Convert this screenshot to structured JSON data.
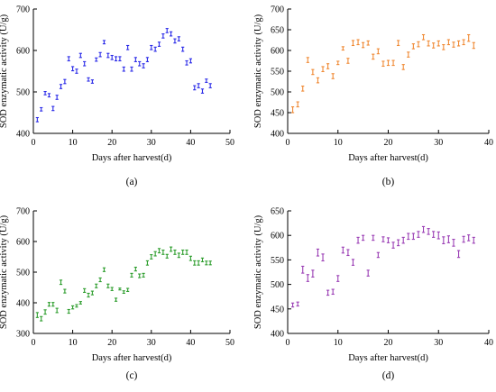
{
  "chart_data": [
    {
      "panel": "(a)",
      "type": "scatter",
      "color": "#2B2BE8",
      "xlabel": "Days after harvest(d)",
      "ylabel": "SOD enzymatic activity (U/g)",
      "xlim": [
        0,
        50
      ],
      "xticks": [
        0,
        10,
        20,
        30,
        40,
        50
      ],
      "ylim": [
        400,
        700
      ],
      "yticks": [
        400,
        500,
        600,
        700
      ],
      "grid": false,
      "points": [
        {
          "x": 1,
          "y": 433,
          "err": 5
        },
        {
          "x": 2,
          "y": 458,
          "err": 4
        },
        {
          "x": 3,
          "y": 497,
          "err": 4
        },
        {
          "x": 4,
          "y": 492,
          "err": 4
        },
        {
          "x": 5,
          "y": 460,
          "err": 5
        },
        {
          "x": 6,
          "y": 487,
          "err": 5
        },
        {
          "x": 7,
          "y": 513,
          "err": 5
        },
        {
          "x": 8,
          "y": 525,
          "err": 5
        },
        {
          "x": 9,
          "y": 580,
          "err": 5
        },
        {
          "x": 10,
          "y": 556,
          "err": 5
        },
        {
          "x": 11,
          "y": 550,
          "err": 5
        },
        {
          "x": 12,
          "y": 588,
          "err": 5
        },
        {
          "x": 13,
          "y": 568,
          "err": 5
        },
        {
          "x": 14,
          "y": 530,
          "err": 4
        },
        {
          "x": 15,
          "y": 525,
          "err": 4
        },
        {
          "x": 16,
          "y": 578,
          "err": 4
        },
        {
          "x": 17,
          "y": 590,
          "err": 5
        },
        {
          "x": 18,
          "y": 620,
          "err": 4
        },
        {
          "x": 19,
          "y": 588,
          "err": 5
        },
        {
          "x": 20,
          "y": 583,
          "err": 5
        },
        {
          "x": 21,
          "y": 580,
          "err": 5
        },
        {
          "x": 22,
          "y": 580,
          "err": 5
        },
        {
          "x": 23,
          "y": 555,
          "err": 5
        },
        {
          "x": 24,
          "y": 607,
          "err": 5
        },
        {
          "x": 25,
          "y": 555,
          "err": 5
        },
        {
          "x": 26,
          "y": 578,
          "err": 5
        },
        {
          "x": 27,
          "y": 568,
          "err": 5
        },
        {
          "x": 28,
          "y": 563,
          "err": 5
        },
        {
          "x": 29,
          "y": 578,
          "err": 5
        },
        {
          "x": 30,
          "y": 607,
          "err": 5
        },
        {
          "x": 31,
          "y": 603,
          "err": 5
        },
        {
          "x": 32,
          "y": 615,
          "err": 5
        },
        {
          "x": 33,
          "y": 635,
          "err": 5
        },
        {
          "x": 34,
          "y": 648,
          "err": 5
        },
        {
          "x": 35,
          "y": 640,
          "err": 5
        },
        {
          "x": 36,
          "y": 623,
          "err": 5
        },
        {
          "x": 37,
          "y": 628,
          "err": 5
        },
        {
          "x": 38,
          "y": 603,
          "err": 5
        },
        {
          "x": 39,
          "y": 570,
          "err": 5
        },
        {
          "x": 40,
          "y": 575,
          "err": 5
        },
        {
          "x": 41,
          "y": 510,
          "err": 5
        },
        {
          "x": 42,
          "y": 515,
          "err": 5
        },
        {
          "x": 43,
          "y": 502,
          "err": 5
        },
        {
          "x": 44,
          "y": 527,
          "err": 4
        },
        {
          "x": 45,
          "y": 515,
          "err": 5
        }
      ]
    },
    {
      "panel": "(b)",
      "type": "scatter",
      "color": "#F08A35",
      "xlabel": "Days after harvest(d)",
      "ylabel": "SOD enzymatic activity (U/g)",
      "xlim": [
        0,
        40
      ],
      "xticks": [
        0,
        10,
        20,
        30,
        40
      ],
      "ylim": [
        400,
        700
      ],
      "yticks": [
        400,
        450,
        500,
        550,
        600,
        650,
        700
      ],
      "grid": false,
      "points": [
        {
          "x": 1,
          "y": 457,
          "err": 7
        },
        {
          "x": 2,
          "y": 470,
          "err": 6
        },
        {
          "x": 3,
          "y": 508,
          "err": 6
        },
        {
          "x": 4,
          "y": 577,
          "err": 6
        },
        {
          "x": 5,
          "y": 548,
          "err": 6
        },
        {
          "x": 6,
          "y": 528,
          "err": 6
        },
        {
          "x": 7,
          "y": 555,
          "err": 6
        },
        {
          "x": 8,
          "y": 562,
          "err": 6
        },
        {
          "x": 9,
          "y": 538,
          "err": 6
        },
        {
          "x": 10,
          "y": 570,
          "err": 4
        },
        {
          "x": 11,
          "y": 605,
          "err": 4
        },
        {
          "x": 12,
          "y": 575,
          "err": 6
        },
        {
          "x": 13,
          "y": 618,
          "err": 6
        },
        {
          "x": 14,
          "y": 620,
          "err": 6
        },
        {
          "x": 15,
          "y": 613,
          "err": 6
        },
        {
          "x": 16,
          "y": 618,
          "err": 5
        },
        {
          "x": 17,
          "y": 585,
          "err": 6
        },
        {
          "x": 18,
          "y": 598,
          "err": 6
        },
        {
          "x": 19,
          "y": 568,
          "err": 6
        },
        {
          "x": 20,
          "y": 570,
          "err": 6
        },
        {
          "x": 21,
          "y": 570,
          "err": 6
        },
        {
          "x": 22,
          "y": 618,
          "err": 6
        },
        {
          "x": 23,
          "y": 560,
          "err": 6
        },
        {
          "x": 24,
          "y": 590,
          "err": 6
        },
        {
          "x": 25,
          "y": 610,
          "err": 6
        },
        {
          "x": 26,
          "y": 615,
          "err": 6
        },
        {
          "x": 27,
          "y": 632,
          "err": 6
        },
        {
          "x": 28,
          "y": 617,
          "err": 6
        },
        {
          "x": 29,
          "y": 612,
          "err": 6
        },
        {
          "x": 30,
          "y": 617,
          "err": 6
        },
        {
          "x": 31,
          "y": 608,
          "err": 6
        },
        {
          "x": 32,
          "y": 620,
          "err": 6
        },
        {
          "x": 33,
          "y": 614,
          "err": 6
        },
        {
          "x": 34,
          "y": 617,
          "err": 6
        },
        {
          "x": 35,
          "y": 620,
          "err": 6
        },
        {
          "x": 36,
          "y": 630,
          "err": 8
        },
        {
          "x": 37,
          "y": 612,
          "err": 7
        }
      ]
    },
    {
      "panel": "(c)",
      "type": "scatter",
      "color": "#2E9E2E",
      "xlabel": "Days after harvest(d)",
      "ylabel": "SOD enzymatic activity (U/g)",
      "xlim": [
        0,
        50
      ],
      "xticks": [
        0,
        10,
        20,
        30,
        40,
        50
      ],
      "ylim": [
        300,
        700
      ],
      "yticks": [
        300,
        400,
        500,
        600,
        700
      ],
      "grid": false,
      "points": [
        {
          "x": 1,
          "y": 360,
          "err": 8
        },
        {
          "x": 2,
          "y": 348,
          "err": 7
        },
        {
          "x": 3,
          "y": 370,
          "err": 7
        },
        {
          "x": 4,
          "y": 395,
          "err": 6
        },
        {
          "x": 5,
          "y": 395,
          "err": 6
        },
        {
          "x": 6,
          "y": 375,
          "err": 7
        },
        {
          "x": 7,
          "y": 467,
          "err": 7
        },
        {
          "x": 8,
          "y": 438,
          "err": 6
        },
        {
          "x": 9,
          "y": 372,
          "err": 6
        },
        {
          "x": 10,
          "y": 385,
          "err": 5
        },
        {
          "x": 11,
          "y": 390,
          "err": 4
        },
        {
          "x": 12,
          "y": 400,
          "err": 4
        },
        {
          "x": 13,
          "y": 440,
          "err": 6
        },
        {
          "x": 14,
          "y": 425,
          "err": 6
        },
        {
          "x": 15,
          "y": 432,
          "err": 6
        },
        {
          "x": 16,
          "y": 455,
          "err": 6
        },
        {
          "x": 17,
          "y": 475,
          "err": 6
        },
        {
          "x": 18,
          "y": 508,
          "err": 6
        },
        {
          "x": 19,
          "y": 455,
          "err": 6
        },
        {
          "x": 20,
          "y": 445,
          "err": 5
        },
        {
          "x": 21,
          "y": 410,
          "err": 5
        },
        {
          "x": 22,
          "y": 445,
          "err": 3
        },
        {
          "x": 23,
          "y": 435,
          "err": 4
        },
        {
          "x": 24,
          "y": 442,
          "err": 5
        },
        {
          "x": 25,
          "y": 490,
          "err": 6
        },
        {
          "x": 26,
          "y": 510,
          "err": 6
        },
        {
          "x": 27,
          "y": 488,
          "err": 6
        },
        {
          "x": 28,
          "y": 490,
          "err": 6
        },
        {
          "x": 29,
          "y": 530,
          "err": 7
        },
        {
          "x": 30,
          "y": 550,
          "err": 7
        },
        {
          "x": 31,
          "y": 560,
          "err": 7
        },
        {
          "x": 32,
          "y": 570,
          "err": 7
        },
        {
          "x": 33,
          "y": 565,
          "err": 7
        },
        {
          "x": 34,
          "y": 552,
          "err": 6
        },
        {
          "x": 35,
          "y": 575,
          "err": 7
        },
        {
          "x": 36,
          "y": 565,
          "err": 7
        },
        {
          "x": 37,
          "y": 555,
          "err": 7
        },
        {
          "x": 38,
          "y": 565,
          "err": 7
        },
        {
          "x": 39,
          "y": 565,
          "err": 7
        },
        {
          "x": 40,
          "y": 545,
          "err": 7
        },
        {
          "x": 41,
          "y": 530,
          "err": 7
        },
        {
          "x": 42,
          "y": 530,
          "err": 7
        },
        {
          "x": 43,
          "y": 540,
          "err": 6
        },
        {
          "x": 44,
          "y": 530,
          "err": 6
        },
        {
          "x": 45,
          "y": 530,
          "err": 6
        }
      ]
    },
    {
      "panel": "(d)",
      "type": "scatter",
      "color": "#9B3FB5",
      "xlabel": "Days after harvest(d)",
      "ylabel": "SOD enzymatic activity (U/g)",
      "xlim": [
        0,
        40
      ],
      "xticks": [
        0,
        10,
        20,
        30,
        40
      ],
      "ylim": [
        400,
        650
      ],
      "yticks": [
        400,
        450,
        500,
        550,
        600,
        650
      ],
      "grid": false,
      "points": [
        {
          "x": 1,
          "y": 458,
          "err": 4
        },
        {
          "x": 2,
          "y": 460,
          "err": 4
        },
        {
          "x": 3,
          "y": 530,
          "err": 7
        },
        {
          "x": 4,
          "y": 513,
          "err": 7
        },
        {
          "x": 5,
          "y": 522,
          "err": 7
        },
        {
          "x": 6,
          "y": 565,
          "err": 7
        },
        {
          "x": 7,
          "y": 555,
          "err": 7
        },
        {
          "x": 8,
          "y": 483,
          "err": 5
        },
        {
          "x": 9,
          "y": 485,
          "err": 5
        },
        {
          "x": 10,
          "y": 512,
          "err": 6
        },
        {
          "x": 11,
          "y": 570,
          "err": 6
        },
        {
          "x": 12,
          "y": 565,
          "err": 6
        },
        {
          "x": 13,
          "y": 545,
          "err": 6
        },
        {
          "x": 14,
          "y": 590,
          "err": 6
        },
        {
          "x": 15,
          "y": 595,
          "err": 5
        },
        {
          "x": 16,
          "y": 523,
          "err": 6
        },
        {
          "x": 17,
          "y": 595,
          "err": 5
        },
        {
          "x": 18,
          "y": 560,
          "err": 5
        },
        {
          "x": 19,
          "y": 592,
          "err": 5
        },
        {
          "x": 20,
          "y": 590,
          "err": 5
        },
        {
          "x": 21,
          "y": 580,
          "err": 6
        },
        {
          "x": 22,
          "y": 585,
          "err": 6
        },
        {
          "x": 23,
          "y": 590,
          "err": 6
        },
        {
          "x": 24,
          "y": 598,
          "err": 6
        },
        {
          "x": 25,
          "y": 598,
          "err": 6
        },
        {
          "x": 26,
          "y": 602,
          "err": 6
        },
        {
          "x": 27,
          "y": 612,
          "err": 6
        },
        {
          "x": 28,
          "y": 608,
          "err": 6
        },
        {
          "x": 29,
          "y": 602,
          "err": 6
        },
        {
          "x": 30,
          "y": 600,
          "err": 7
        },
        {
          "x": 31,
          "y": 590,
          "err": 7
        },
        {
          "x": 32,
          "y": 592,
          "err": 7
        },
        {
          "x": 33,
          "y": 585,
          "err": 7
        },
        {
          "x": 34,
          "y": 562,
          "err": 7
        },
        {
          "x": 35,
          "y": 592,
          "err": 6
        },
        {
          "x": 36,
          "y": 595,
          "err": 6
        },
        {
          "x": 37,
          "y": 590,
          "err": 6
        }
      ]
    }
  ]
}
